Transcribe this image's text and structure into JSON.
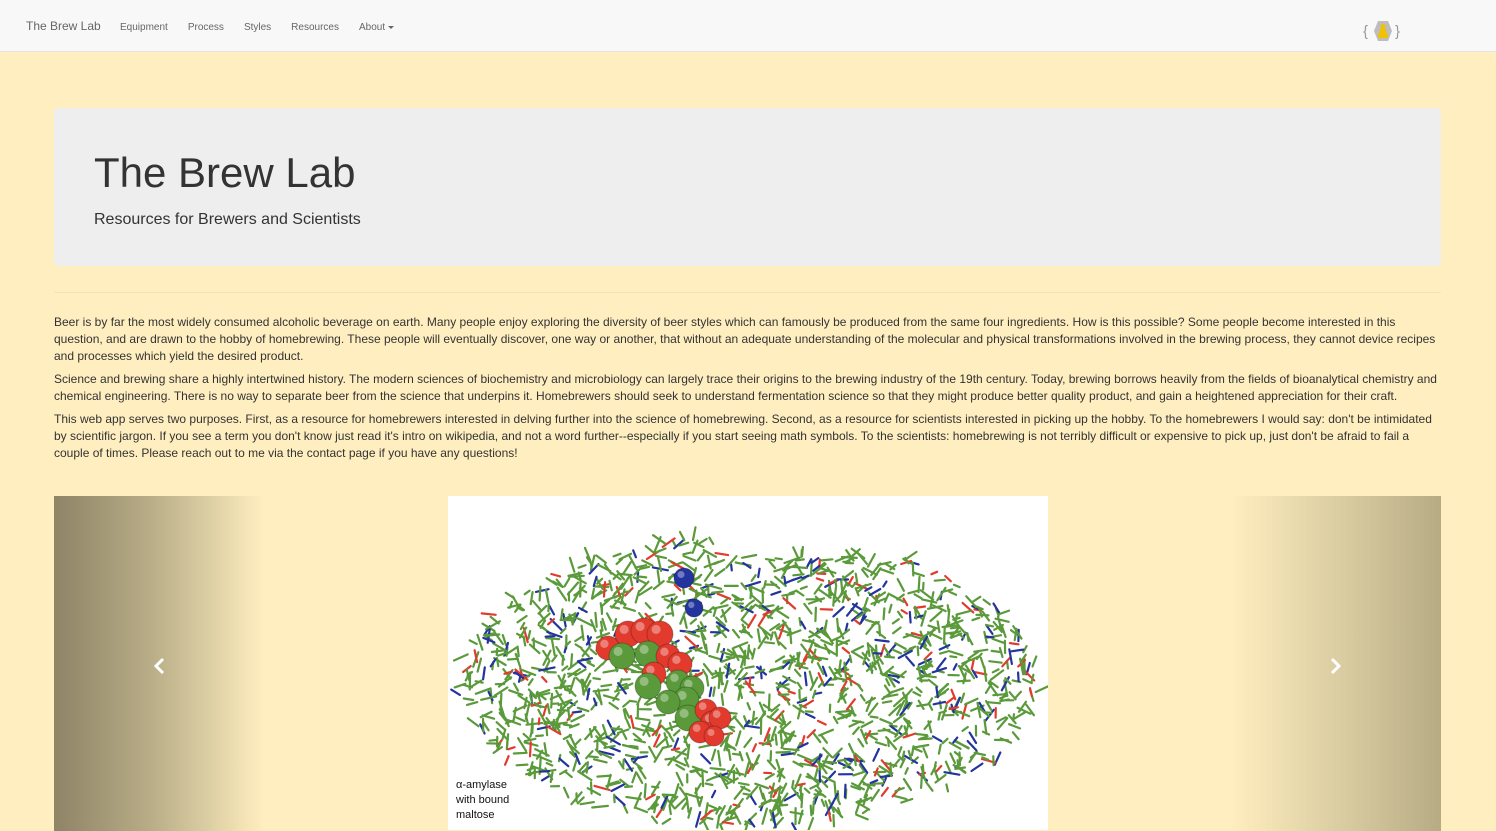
{
  "navbar": {
    "brand": "The Brew Lab",
    "links": [
      {
        "label": "Equipment"
      },
      {
        "label": "Process"
      },
      {
        "label": "Styles"
      },
      {
        "label": "Resources"
      },
      {
        "label": "About",
        "dropdown": true
      }
    ],
    "logo_icon": "flask-hexagon-logo-icon"
  },
  "jumbotron": {
    "title": "The Brew Lab",
    "subtitle": "Resources for Brewers and Scientists"
  },
  "content": {
    "paragraphs": [
      "Beer is by far the most widely consumed alcoholic beverage on earth. Many people enjoy exploring the diversity of beer styles which can famously be produced from the same four ingredients. How is this possible? Some people become interested in this question, and are drawn to the hobby of homebrewing. These people will eventually discover, one way or another, that without an adequate understanding of the molecular and physical transformations involved in the brewing process, they cannot device recipes and processes which yield the desired product.",
      "Science and brewing share a highly intertwined history. The modern sciences of biochemistry and microbiology can largely trace their origins to the brewing industry of the 19th century. Today, brewing borrows heavily from the fields of bioanalytical chemistry and chemical engineering. There is no way to separate beer from the science that underpins it. Homebrewers should seek to understand fermentation science so that they might produce better quality product, and gain a heightened appreciation for their craft.",
      "This web app serves two purposes. First, as a resource for homebrewers interested in delving further into the science of homebrewing. Second, as a resource for scientists interested in picking up the hobby. To the homebrewers I would say: don't be intimidated by scientific jargon. If you see a term you don't know just read it's intro on wikipedia, and not a word further--especially if you start seeing math symbols. To the scientists: homebrewing is not terribly difficult or expensive to pick up, just don't be afraid to fail a couple of times. Please reach out to me via the contact page if you have any questions!"
    ]
  },
  "carousel": {
    "prev_icon": "chevron-left-icon",
    "next_icon": "chevron-right-icon",
    "slide_caption_lines": [
      "α-amylase",
      "with bound",
      "maltose"
    ]
  },
  "colors": {
    "page_bg": "#ffeebf",
    "navbar_bg": "#f8f8f8",
    "jumbotron_bg": "#eeeeee",
    "stick_green": "#5a9a3a",
    "atom_red": "#e23b2e",
    "atom_blue": "#23349e"
  }
}
